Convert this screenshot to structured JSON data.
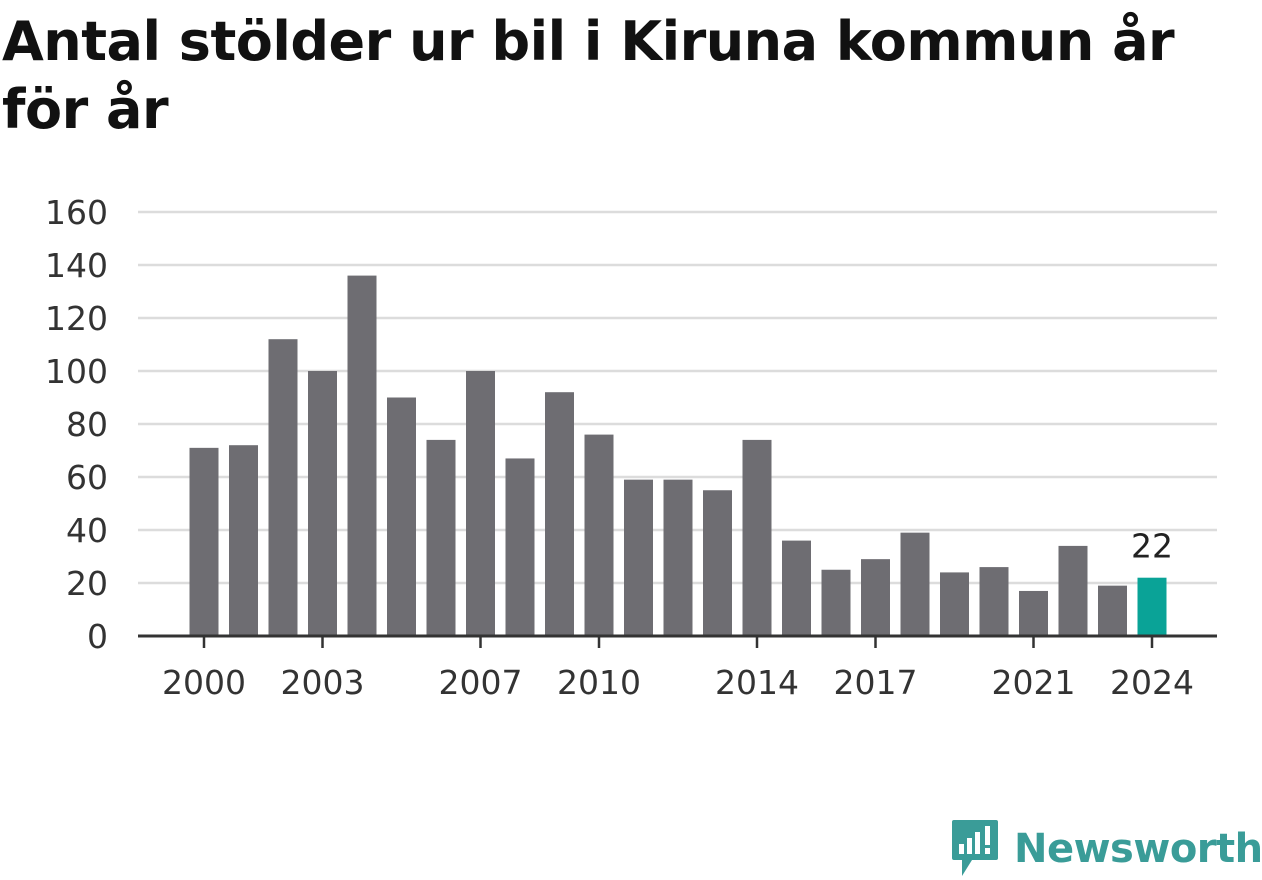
{
  "chart_data": {
    "type": "bar",
    "title": "Antal stölder ur bil i Kiruna kommun år för år",
    "xlabel": "",
    "ylabel": "",
    "categories": [
      "2000",
      "2001",
      "2002",
      "2003",
      "2004",
      "2005",
      "2006",
      "2007",
      "2008",
      "2009",
      "2010",
      "2011",
      "2012",
      "2013",
      "2014",
      "2015",
      "2016",
      "2017",
      "2018",
      "2019",
      "2020",
      "2021",
      "2022",
      "2023",
      "2024"
    ],
    "values": [
      71,
      72,
      112,
      100,
      136,
      90,
      74,
      100,
      67,
      92,
      76,
      59,
      59,
      55,
      74,
      36,
      25,
      29,
      39,
      24,
      26,
      17,
      34,
      19,
      22
    ],
    "x_tick_labels": [
      "2000",
      "2003",
      "2007",
      "2010",
      "2014",
      "2017",
      "2021",
      "2024"
    ],
    "y_ticks": [
      0,
      20,
      40,
      60,
      80,
      100,
      120,
      140,
      160
    ],
    "ylim": [
      0,
      160
    ],
    "grid": true,
    "bar_color": "#6e6d72",
    "highlight_color": "#0aa397",
    "highlight_index": 24,
    "annotations": [
      {
        "category": "2024",
        "text": "22"
      }
    ]
  },
  "branding": {
    "name": "Newsworthy",
    "icon": "newsworthy-logo-icon",
    "color": "#3a9c98"
  }
}
